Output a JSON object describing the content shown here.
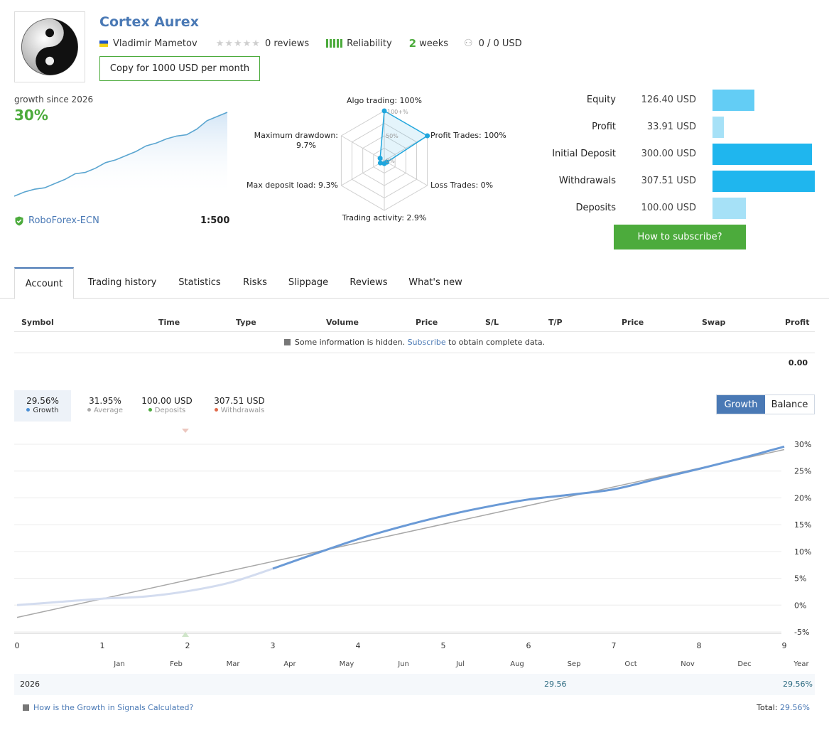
{
  "header": {
    "title": "Cortex Aurex",
    "author": "Vladimir Mametov",
    "reviews": "0 reviews",
    "reliability_label": "Reliability",
    "weeks_num": "2",
    "weeks_label": "weeks",
    "subscribers": "0 / 0 USD",
    "copy_button": "Copy for 1000 USD per month"
  },
  "summary": {
    "growth_since": "growth since 2026",
    "growth_value": "30%",
    "broker": "RoboForex-ECN",
    "leverage": "1:500"
  },
  "radar": {
    "algo": "Algo trading: 100%",
    "profit_trades": "Profit Trades: 100%",
    "loss_trades": "Loss Trades: 0%",
    "activity": "Trading activity: 2.9%",
    "max_load": "Max deposit load: 9.3%",
    "drawdown_l1": "Maximum drawdown:",
    "drawdown_l2": "9.7%",
    "t100": "100+%",
    "t50": "50%",
    "t0": "0%",
    "values": [
      100,
      100,
      0,
      2.9,
      9.3,
      9.7
    ]
  },
  "stats": [
    {
      "label": "Equity",
      "value": "126.40 USD",
      "amount": 126.4,
      "color": "#63cdf5"
    },
    {
      "label": "Profit",
      "value": "33.91 USD",
      "amount": 33.91,
      "color": "#a6e1f7"
    },
    {
      "label": "Initial Deposit",
      "value": "300.00 USD",
      "amount": 300.0,
      "color": "#1fb6ee"
    },
    {
      "label": "Withdrawals",
      "value": "307.51 USD",
      "amount": 307.51,
      "color": "#1fb6ee"
    },
    {
      "label": "Deposits",
      "value": "100.00 USD",
      "amount": 100.0,
      "color": "#a6e1f7"
    }
  ],
  "subscribe_button": "How to subscribe?",
  "tabs": [
    "Account",
    "Trading history",
    "Statistics",
    "Risks",
    "Slippage",
    "Reviews",
    "What's new"
  ],
  "table": {
    "headers": [
      "Symbol",
      "Time",
      "Type",
      "Volume",
      "Price",
      "S/L",
      "T/P",
      "Price",
      "Swap",
      "Profit"
    ],
    "note_pre": "Some information is hidden.",
    "note_link": "Subscribe",
    "note_post": "to obtain complete data.",
    "total": "0.00"
  },
  "legend": {
    "growth_value": "29.56%",
    "growth_label": "Growth",
    "average_value": "31.95%",
    "average_label": "Average",
    "deposits_value": "100.00 USD",
    "deposits_label": "Deposits",
    "withdrawals_value": "307.51 USD",
    "withdrawals_label": "Withdrawals"
  },
  "toggle": {
    "growth": "Growth",
    "balance": "Balance"
  },
  "colors": {
    "growth": "#6a9ad6",
    "average": "#aaaaaa",
    "deposits": "#4cab3c",
    "withdrawals": "#e06a4a"
  },
  "chart_data": {
    "type": "line",
    "x_ticks": [
      "0",
      "1",
      "2",
      "3",
      "4",
      "5",
      "6",
      "7",
      "8",
      "9"
    ],
    "y_ticks": [
      "30%",
      "25%",
      "20%",
      "15%",
      "10%",
      "5%",
      "0%",
      "-5%"
    ],
    "ylim": [
      -5,
      30
    ],
    "xlim": [
      0,
      9
    ],
    "months": [
      "Jan",
      "Feb",
      "Mar",
      "Apr",
      "May",
      "Jun",
      "Jul",
      "Aug",
      "Sep",
      "Oct",
      "Nov",
      "Dec",
      "Year"
    ],
    "series": [
      {
        "name": "Growth",
        "x": [
          0,
          0.5,
          1,
          1.5,
          2,
          2.5,
          3,
          3.5,
          4,
          4.5,
          5,
          5.5,
          6,
          6.5,
          7,
          7.5,
          8,
          8.5,
          9
        ],
        "values": [
          0,
          0.6,
          1.2,
          1.6,
          2.6,
          4.2,
          6.8,
          9.6,
          12.3,
          14.6,
          16.6,
          18.3,
          19.7,
          20.6,
          21.6,
          23.5,
          25.4,
          27.4,
          29.56
        ]
      },
      {
        "name": "Average",
        "x": [
          0,
          9
        ],
        "values": [
          -2.3,
          29.0
        ]
      }
    ]
  },
  "mini_chart": {
    "values": [
      0,
      1.5,
      2.5,
      3,
      4.5,
      6,
      8,
      8.5,
      10,
      12,
      13,
      14.5,
      16,
      18,
      19,
      20.5,
      21.5,
      22,
      24,
      27,
      28.5,
      30
    ]
  },
  "year_row": {
    "year": "2026",
    "sep_value": "29.56",
    "year_value": "29.56%"
  },
  "footer": {
    "how_link": "How is the Growth in Signals Calculated?",
    "total_label": "Total:",
    "total_value": "29.56%"
  }
}
